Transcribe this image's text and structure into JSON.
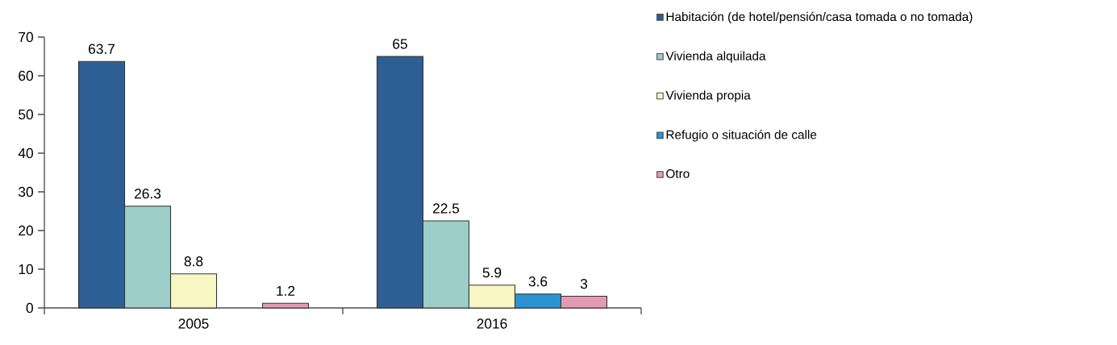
{
  "chart_data": {
    "type": "bar",
    "categories": [
      "2005",
      "2016"
    ],
    "series": [
      {
        "name": "Habitación (de hotel/pensión/casa tomada o no tomada)",
        "color": "#2e5f94",
        "values": [
          63.7,
          65
        ]
      },
      {
        "name": "Vivienda alquilada",
        "color": "#9ccfca",
        "values": [
          26.3,
          22.5
        ]
      },
      {
        "name": "Vivienda propia",
        "color": "#f8f7c4",
        "values": [
          8.8,
          5.9
        ]
      },
      {
        "name": "Refugio o situación de calle",
        "color": "#2b93d1",
        "values": [
          null,
          3.6
        ]
      },
      {
        "name": "Otro",
        "color": "#e39ab3",
        "values": [
          1.2,
          3
        ]
      }
    ],
    "ylim": [
      0,
      70
    ],
    "yticks": [
      0,
      10,
      20,
      30,
      40,
      50,
      60,
      70
    ],
    "data_labels": true,
    "legend": "top right",
    "grid": false
  }
}
